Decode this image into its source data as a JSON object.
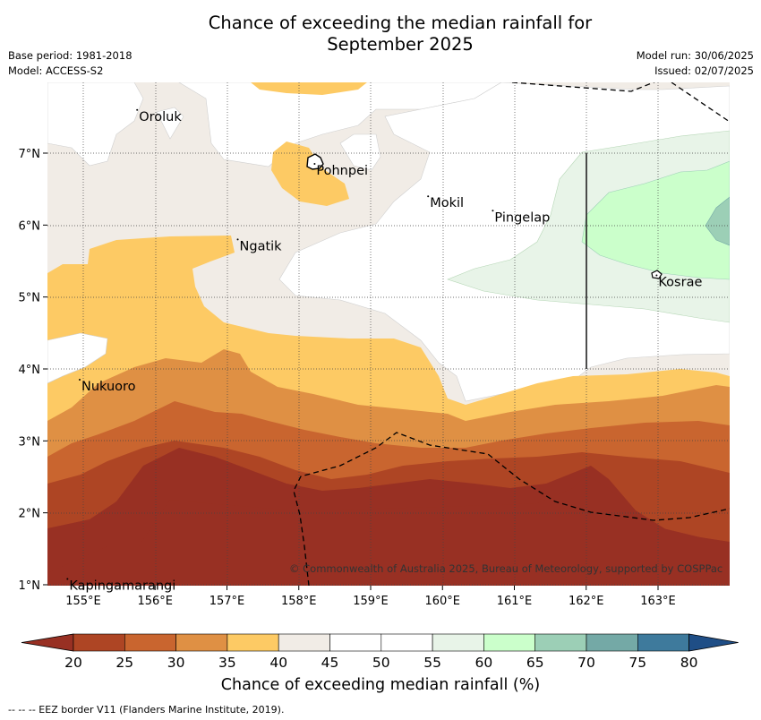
{
  "title_line1": "Chance of exceeding the median rainfall for",
  "title_line2": "September 2025",
  "base_period": "Base period: 1981-2018",
  "model": "Model: ACCESS-S2",
  "model_run": "Model run: 30/06/2025",
  "issued": "Issued: 02/07/2025",
  "copyright": "© Commonwealth of Australia 2025, Bureau of Meteorology, supported by COSPPac",
  "colorbar_title": "Chance of exceeding median rainfall (%)",
  "footnote": "-- -- -- EEZ border V11 (Flanders Marine Institute, 2019).",
  "x_ticks": [
    "155°E",
    "156°E",
    "157°E",
    "158°E",
    "159°E",
    "160°E",
    "161°E",
    "162°E",
    "163°E"
  ],
  "y_ticks": [
    "7°N",
    "6°N",
    "5°N",
    "4°N",
    "3°N",
    "2°N",
    "1°N"
  ],
  "places": [
    {
      "name": "Oroluk",
      "lon": 155.75,
      "lat": 7.6
    },
    {
      "name": "Pohnpei",
      "lon": 158.22,
      "lat": 6.85
    },
    {
      "name": "Mokil",
      "lon": 159.8,
      "lat": 6.4
    },
    {
      "name": "Pingelap",
      "lon": 160.7,
      "lat": 6.2
    },
    {
      "name": "Ngatik",
      "lon": 157.15,
      "lat": 5.8
    },
    {
      "name": "Kosrae",
      "lon": 162.98,
      "lat": 5.3
    },
    {
      "name": "Nukuoro",
      "lon": 154.95,
      "lat": 3.85
    },
    {
      "name": "Kapingamarangi",
      "lon": 154.78,
      "lat": 1.08
    }
  ],
  "colorbar": {
    "levels": [
      "20",
      "25",
      "30",
      "35",
      "40",
      "45",
      "50",
      "55",
      "60",
      "65",
      "70",
      "75",
      "80"
    ],
    "colors": [
      "#983023",
      "#ae4524",
      "#c9652f",
      "#df9044",
      "#fdca64",
      "#f1ece6",
      "#ffffff",
      "#ffffff",
      "#e8f4e8",
      "#cbffcb",
      "#9ccfb6",
      "#74a9a6",
      "#3e7a9c",
      "#1f4e86"
    ]
  }
}
